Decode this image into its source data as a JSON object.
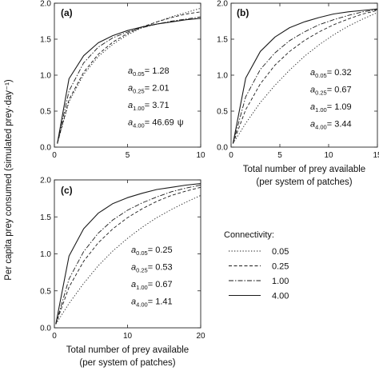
{
  "figure": {
    "ylabel": "Per capita prey consumed (simulated prey·day⁻¹)"
  },
  "legend": {
    "title": "Connectivity:",
    "entries": [
      {
        "label": "0.05",
        "style": "dotted"
      },
      {
        "label": "0.25",
        "style": "short-dash"
      },
      {
        "label": "1.00",
        "style": "dash-dot"
      },
      {
        "label": "4.00",
        "style": "solid"
      }
    ]
  },
  "chart_data": [
    {
      "type": "line",
      "panel": "(a)",
      "xlabel": "",
      "ylabel": "",
      "xlim": [
        0,
        10
      ],
      "ylim": [
        0,
        2.0
      ],
      "xticks": [
        "0",
        "5",
        "10"
      ],
      "yticks": [
        "0.0",
        "0.5",
        "1.0",
        "1.5",
        "2.0"
      ],
      "annotations": [
        {
          "sub": "0.05",
          "value": "= 1.28",
          "suffix": ""
        },
        {
          "sub": "0.25",
          "value": "= 2.01",
          "suffix": ""
        },
        {
          "sub": "1.00",
          "value": "= 3.71",
          "suffix": ""
        },
        {
          "sub": "4.00",
          "value": "= 46.69",
          "suffix": "ψ"
        }
      ],
      "x": [
        0.2,
        1,
        2,
        3,
        4,
        5,
        6,
        7,
        8,
        9,
        10
      ],
      "series": [
        {
          "style": "dotted",
          "values": [
            0.05,
            0.63,
            1.01,
            1.26,
            1.43,
            1.56,
            1.66,
            1.74,
            1.81,
            1.87,
            1.93
          ]
        },
        {
          "style": "short-dash",
          "values": [
            0.05,
            0.66,
            1.04,
            1.29,
            1.46,
            1.58,
            1.67,
            1.74,
            1.8,
            1.85,
            1.88
          ]
        },
        {
          "style": "dash-dot",
          "values": [
            0.05,
            0.78,
            1.17,
            1.39,
            1.52,
            1.6,
            1.66,
            1.71,
            1.75,
            1.78,
            1.81
          ]
        },
        {
          "style": "solid",
          "values": [
            0.05,
            0.95,
            1.27,
            1.45,
            1.55,
            1.62,
            1.67,
            1.71,
            1.74,
            1.77,
            1.79
          ]
        }
      ]
    },
    {
      "type": "line",
      "panel": "(b)",
      "xlabel": "Total number of prey available",
      "xlabel2": "(per system of patches)",
      "ylabel": "",
      "xlim": [
        0,
        15
      ],
      "ylim": [
        0,
        2.0
      ],
      "xticks": [
        "0",
        "5",
        "10",
        "15"
      ],
      "yticks": [
        "0.0",
        "0.5",
        "1.0",
        "1.5",
        "2.0"
      ],
      "annotations": [
        {
          "sub": "0.05",
          "value": "= 0.32",
          "suffix": ""
        },
        {
          "sub": "0.25",
          "value": "= 0.67",
          "suffix": ""
        },
        {
          "sub": "1.00",
          "value": "= 1.09",
          "suffix": ""
        },
        {
          "sub": "4.00",
          "value": "= 3.44",
          "suffix": ""
        }
      ],
      "x": [
        0.2,
        1.5,
        3,
        4.5,
        6,
        7.5,
        9,
        10.5,
        12,
        13.5,
        15
      ],
      "series": [
        {
          "style": "dotted",
          "values": [
            0.05,
            0.33,
            0.62,
            0.86,
            1.07,
            1.26,
            1.42,
            1.56,
            1.68,
            1.78,
            1.87
          ]
        },
        {
          "style": "short-dash",
          "values": [
            0.05,
            0.52,
            0.88,
            1.14,
            1.33,
            1.48,
            1.6,
            1.7,
            1.78,
            1.85,
            1.9
          ]
        },
        {
          "style": "dash-dot",
          "values": [
            0.05,
            0.7,
            1.08,
            1.31,
            1.48,
            1.6,
            1.7,
            1.77,
            1.83,
            1.88,
            1.91
          ]
        },
        {
          "style": "solid",
          "values": [
            0.05,
            0.96,
            1.33,
            1.53,
            1.66,
            1.74,
            1.8,
            1.85,
            1.88,
            1.9,
            1.92
          ]
        }
      ]
    },
    {
      "type": "line",
      "panel": "(c)",
      "xlabel": "Total number of prey available",
      "xlabel2": "(per system of patches)",
      "ylabel": "",
      "xlim": [
        0,
        20
      ],
      "ylim": [
        0,
        2.0
      ],
      "xticks": [
        "0",
        "10",
        "20"
      ],
      "yticks": [
        "0.0",
        "0.5",
        "1.0",
        "1.5",
        "2.0"
      ],
      "annotations": [
        {
          "sub": "0.05",
          "value": "= 0.25",
          "suffix": ""
        },
        {
          "sub": "0.25",
          "value": "= 0.53",
          "suffix": ""
        },
        {
          "sub": "1.00",
          "value": "= 0.67",
          "suffix": ""
        },
        {
          "sub": "4.00",
          "value": "= 1.41",
          "suffix": ""
        }
      ],
      "x": [
        0.2,
        2,
        4,
        6,
        8,
        10,
        12,
        14,
        16,
        18,
        20
      ],
      "series": [
        {
          "style": "dotted",
          "values": [
            0.05,
            0.33,
            0.6,
            0.84,
            1.04,
            1.21,
            1.36,
            1.49,
            1.6,
            1.7,
            1.79
          ]
        },
        {
          "style": "short-dash",
          "values": [
            0.05,
            0.55,
            0.9,
            1.15,
            1.34,
            1.49,
            1.61,
            1.71,
            1.79,
            1.85,
            1.9
          ]
        },
        {
          "style": "dash-dot",
          "values": [
            0.05,
            0.66,
            1.03,
            1.28,
            1.46,
            1.59,
            1.69,
            1.77,
            1.84,
            1.89,
            1.93
          ]
        },
        {
          "style": "solid",
          "values": [
            0.05,
            0.97,
            1.34,
            1.55,
            1.68,
            1.76,
            1.82,
            1.87,
            1.9,
            1.93,
            1.95
          ]
        }
      ]
    }
  ]
}
